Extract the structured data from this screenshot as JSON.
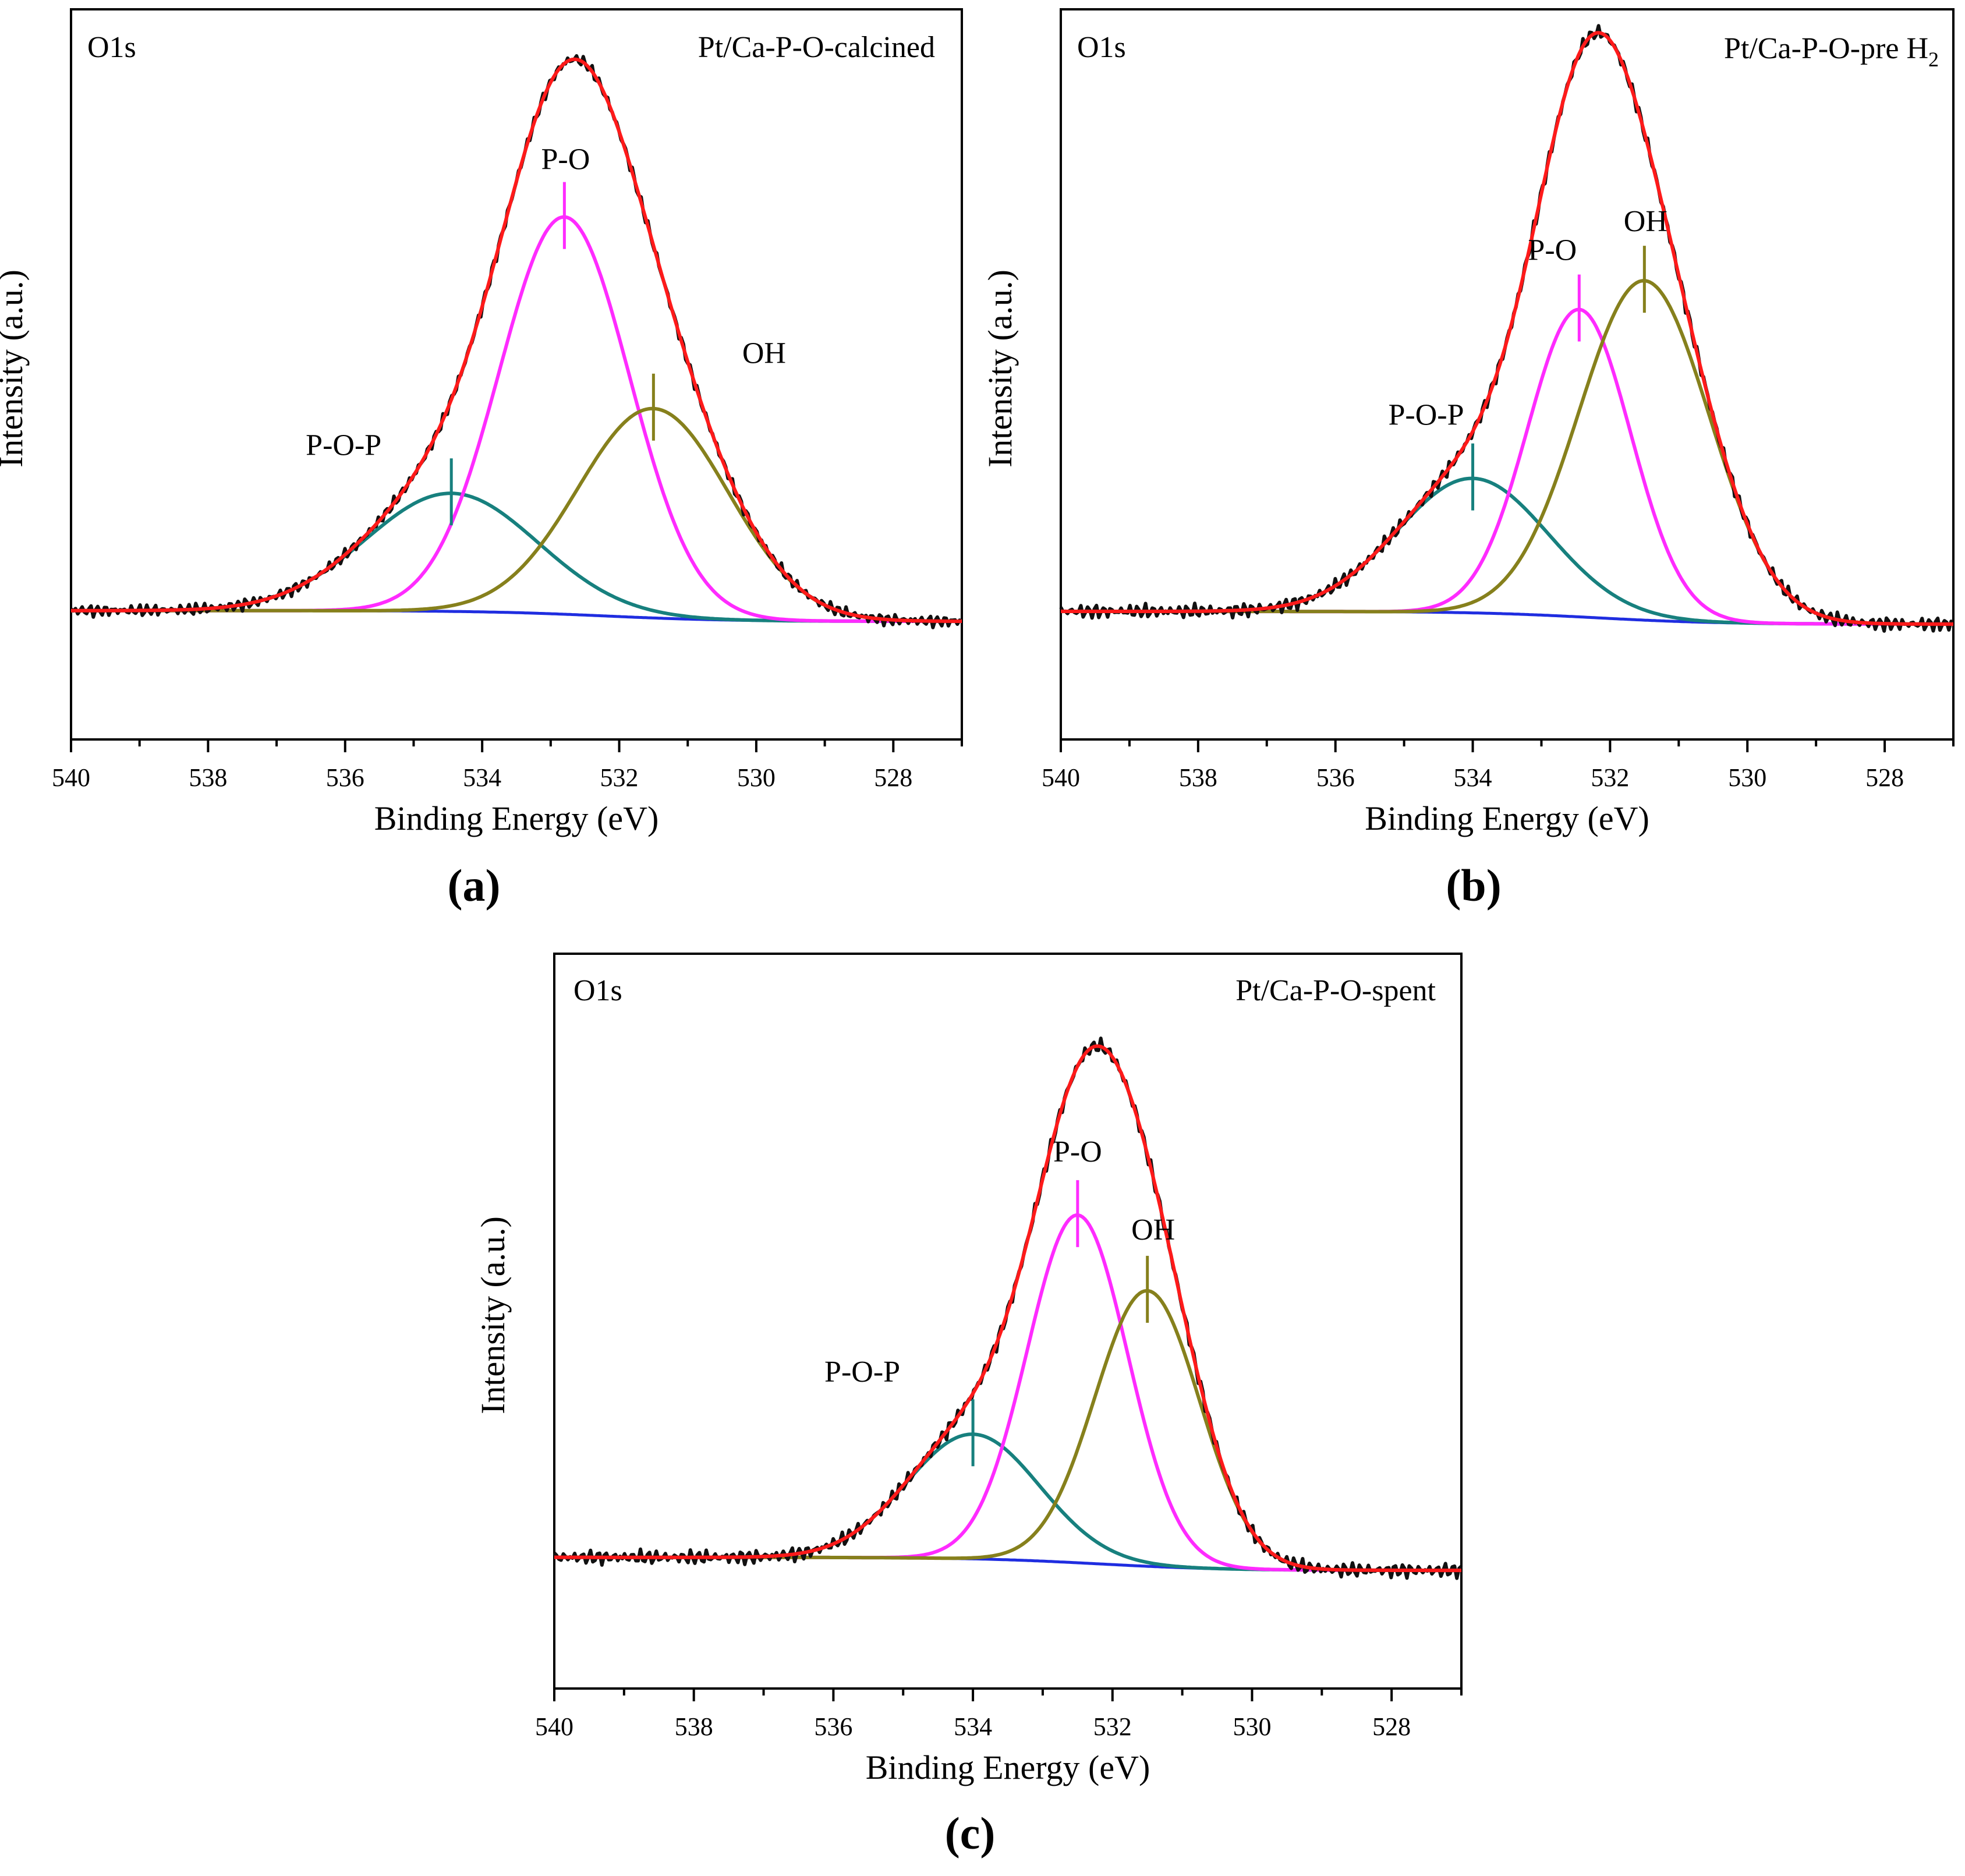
{
  "figure": {
    "panels": [
      {
        "letter": "a",
        "letter_open": "(",
        "letter_close": ")"
      },
      {
        "letter": "b",
        "letter_open": "(",
        "letter_close": ")"
      },
      {
        "letter": "c",
        "letter_open": "(",
        "letter_close": ")"
      }
    ]
  },
  "chart_data": [
    {
      "type": "line",
      "panel": "a",
      "title": "Pt/Ca-P-O-calcined",
      "corner_label": "O1s",
      "xlabel": "Binding Energy (eV)",
      "ylabel": "Intensity (a.u.)",
      "xlim": [
        540,
        527
      ],
      "x_ticks": [
        540,
        538,
        536,
        534,
        532,
        530,
        528
      ],
      "ylim": [
        -0.24,
        1.12
      ],
      "y_ticks_shown": false,
      "background": {
        "start": 0.0,
        "end": -0.02
      },
      "components": [
        {
          "name": "P-O-P",
          "color": "#17807e",
          "center": 534.45,
          "amplitude": 0.22,
          "sigma": 1.25
        },
        {
          "name": "P-O",
          "color": "#ff2bff",
          "center": 532.8,
          "amplitude": 0.74,
          "sigma": 0.95
        },
        {
          "name": "OH",
          "color": "#86801c",
          "center": 531.5,
          "amplitude": 0.39,
          "sigma": 1.1
        }
      ],
      "fit": {
        "name": "Fit",
        "color": "#ff1a1a"
      },
      "raw": {
        "name": "Raw",
        "color": "#111111"
      },
      "background_line": {
        "name": "Background",
        "color": "#1f2de0"
      },
      "annotations": [
        {
          "text": "P-O-P",
          "for": "P-O-P"
        },
        {
          "text": "P-O",
          "for": "P-O"
        },
        {
          "text": "OH",
          "for": "OH"
        }
      ]
    },
    {
      "type": "line",
      "panel": "b",
      "title": "Pt/Ca-P-O-pre H",
      "title_subscript": "2",
      "corner_label": "O1s",
      "xlabel": "Binding Energy (eV)",
      "ylabel": "Intensity (a.u.)",
      "xlim": [
        540,
        527
      ],
      "x_ticks": [
        540,
        538,
        536,
        534,
        532,
        530,
        528
      ],
      "ylim": [
        -0.2,
        0.94
      ],
      "y_ticks_shown": false,
      "background": {
        "start": 0.0,
        "end": -0.02
      },
      "components": [
        {
          "name": "P-O-P",
          "color": "#17807e",
          "center": 534.0,
          "amplitude": 0.21,
          "sigma": 1.1
        },
        {
          "name": "P-O",
          "color": "#ff2bff",
          "center": 532.45,
          "amplitude": 0.48,
          "sigma": 0.75
        },
        {
          "name": "OH",
          "color": "#86801c",
          "center": 531.5,
          "amplitude": 0.53,
          "sigma": 0.95
        }
      ],
      "fit": {
        "name": "Fit",
        "color": "#ff1a1a"
      },
      "raw": {
        "name": "Raw",
        "color": "#111111"
      },
      "background_line": {
        "name": "Background",
        "color": "#1f2de0"
      },
      "annotations": [
        {
          "text": "P-O-P",
          "for": "P-O-P"
        },
        {
          "text": "P-O",
          "for": "P-O"
        },
        {
          "text": "OH",
          "for": "OH"
        }
      ]
    },
    {
      "type": "line",
      "panel": "c",
      "title": "Pt/Ca-P-O-spent",
      "corner_label": "O1s",
      "xlabel": "Binding Energy (eV)",
      "ylabel": "Intensity (a.u.)",
      "xlim": [
        540,
        527
      ],
      "x_ticks": [
        540,
        538,
        536,
        534,
        532,
        530,
        528
      ],
      "ylim": [
        -0.2,
        0.92
      ],
      "y_ticks_shown": false,
      "background": {
        "start": 0.0,
        "end": -0.02
      },
      "components": [
        {
          "name": "P-O-P",
          "color": "#17807e",
          "center": 534.0,
          "amplitude": 0.19,
          "sigma": 0.95
        },
        {
          "name": "P-O",
          "color": "#ff2bff",
          "center": 532.5,
          "amplitude": 0.53,
          "sigma": 0.72
        },
        {
          "name": "OH",
          "color": "#86801c",
          "center": 531.5,
          "amplitude": 0.42,
          "sigma": 0.75
        }
      ],
      "fit": {
        "name": "Fit",
        "color": "#ff1a1a"
      },
      "raw": {
        "name": "Raw",
        "color": "#111111"
      },
      "background_line": {
        "name": "Background",
        "color": "#1f2de0"
      },
      "annotations": [
        {
          "text": "P-O-P",
          "for": "P-O-P"
        },
        {
          "text": "P-O",
          "for": "P-O"
        },
        {
          "text": "OH",
          "for": "OH"
        }
      ]
    }
  ]
}
